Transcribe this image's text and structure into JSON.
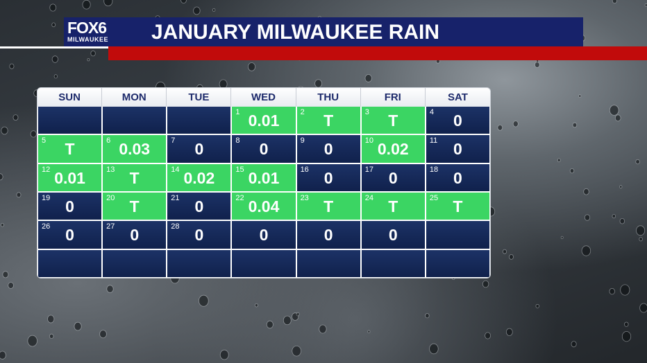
{
  "header": {
    "logo_main": "FOX6",
    "logo_sub": "MILWAUKEE",
    "title": "JANUARY MILWAUKEE RAIN"
  },
  "colors": {
    "header_bg": "#17226a",
    "red_bar": "#c10b0b",
    "rain_day": "#3bd563",
    "dry_day": "#13244f"
  },
  "calendar": {
    "weekdays": [
      "SUN",
      "MON",
      "TUE",
      "WED",
      "THU",
      "FRI",
      "SAT"
    ],
    "weeks": [
      [
        {
          "day": "",
          "amount": "",
          "rain": false
        },
        {
          "day": "",
          "amount": "",
          "rain": false
        },
        {
          "day": "",
          "amount": "",
          "rain": false
        },
        {
          "day": "1",
          "amount": "0.01",
          "rain": true
        },
        {
          "day": "2",
          "amount": "T",
          "rain": true
        },
        {
          "day": "3",
          "amount": "T",
          "rain": true
        },
        {
          "day": "4",
          "amount": "0",
          "rain": false
        }
      ],
      [
        {
          "day": "5",
          "amount": "T",
          "rain": true
        },
        {
          "day": "6",
          "amount": "0.03",
          "rain": true
        },
        {
          "day": "7",
          "amount": "0",
          "rain": false
        },
        {
          "day": "8",
          "amount": "0",
          "rain": false
        },
        {
          "day": "9",
          "amount": "0",
          "rain": false
        },
        {
          "day": "10",
          "amount": "0.02",
          "rain": true
        },
        {
          "day": "11",
          "amount": "0",
          "rain": false
        }
      ],
      [
        {
          "day": "12",
          "amount": "0.01",
          "rain": true
        },
        {
          "day": "13",
          "amount": "T",
          "rain": true
        },
        {
          "day": "14",
          "amount": "0.02",
          "rain": true
        },
        {
          "day": "15",
          "amount": "0.01",
          "rain": true
        },
        {
          "day": "16",
          "amount": "0",
          "rain": false
        },
        {
          "day": "17",
          "amount": "0",
          "rain": false
        },
        {
          "day": "18",
          "amount": "0",
          "rain": false
        }
      ],
      [
        {
          "day": "19",
          "amount": "0",
          "rain": false
        },
        {
          "day": "20",
          "amount": "T",
          "rain": true
        },
        {
          "day": "21",
          "amount": "0",
          "rain": false
        },
        {
          "day": "22",
          "amount": "0.04",
          "rain": true
        },
        {
          "day": "23",
          "amount": "T",
          "rain": true
        },
        {
          "day": "24",
          "amount": "T",
          "rain": true
        },
        {
          "day": "25",
          "amount": "T",
          "rain": true
        }
      ],
      [
        {
          "day": "26",
          "amount": "0",
          "rain": false
        },
        {
          "day": "27",
          "amount": "0",
          "rain": false
        },
        {
          "day": "28",
          "amount": "0",
          "rain": false
        },
        {
          "day": "",
          "amount": "0",
          "rain": false
        },
        {
          "day": "",
          "amount": "0",
          "rain": false
        },
        {
          "day": "",
          "amount": "0",
          "rain": false
        },
        {
          "day": "",
          "amount": "",
          "rain": false
        }
      ],
      [
        {
          "day": "",
          "amount": "",
          "rain": false
        },
        {
          "day": "",
          "amount": "",
          "rain": false
        },
        {
          "day": "",
          "amount": "",
          "rain": false
        },
        {
          "day": "",
          "amount": "",
          "rain": false
        },
        {
          "day": "",
          "amount": "",
          "rain": false
        },
        {
          "day": "",
          "amount": "",
          "rain": false
        },
        {
          "day": "",
          "amount": "",
          "rain": false
        }
      ]
    ]
  }
}
